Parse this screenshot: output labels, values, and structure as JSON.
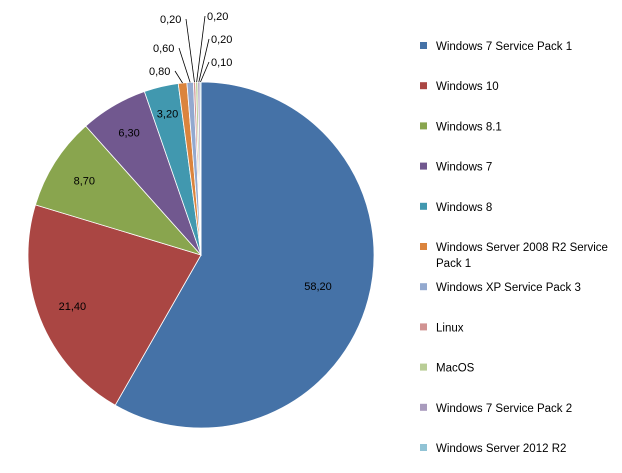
{
  "chart_data": {
    "type": "pie",
    "title": "",
    "start_angle_deg": 0,
    "direction": "clockwise",
    "series": [
      {
        "name": "Windows 7 Service Pack 1",
        "legend_lines": [
          "Windows 7 Service Pack 1"
        ],
        "value": 58.2,
        "label": "58,20",
        "color": "#4572A7"
      },
      {
        "name": "Windows 10",
        "legend_lines": [
          "Windows 10"
        ],
        "value": 21.4,
        "label": "21,40",
        "color": "#AA4643"
      },
      {
        "name": "Windows 8.1",
        "legend_lines": [
          "Windows 8.1"
        ],
        "value": 8.7,
        "label": "8,70",
        "color": "#89A54E"
      },
      {
        "name": "Windows 7",
        "legend_lines": [
          "Windows 7"
        ],
        "value": 6.3,
        "label": "6,30",
        "color": "#71588F"
      },
      {
        "name": "Windows 8",
        "legend_lines": [
          "Windows 8"
        ],
        "value": 3.2,
        "label": "3,20",
        "color": "#4198AF"
      },
      {
        "name": "Windows Server 2008 R2 Service Pack 1",
        "legend_lines": [
          "Windows Server 2008 R2 Service",
          "Pack 1"
        ],
        "value": 0.8,
        "label": "0,80",
        "color": "#DB843D"
      },
      {
        "name": "Windows XP Service Pack 3",
        "legend_lines": [
          "Windows XP Service Pack 3"
        ],
        "value": 0.6,
        "label": "0,60",
        "color": "#93A9CF"
      },
      {
        "name": "Linux",
        "legend_lines": [
          "Linux"
        ],
        "value": 0.2,
        "label": "0,20",
        "color": "#D19392"
      },
      {
        "name": "MacOS",
        "legend_lines": [
          "MacOS"
        ],
        "value": 0.2,
        "label": "0,20",
        "color": "#B9CD96"
      },
      {
        "name": "Windows 7 Service Pack 2",
        "legend_lines": [
          "Windows 7 Service Pack 2"
        ],
        "value": 0.2,
        "label": "0,20",
        "color": "#A99BBD"
      },
      {
        "name": "Windows Server 2012 R2",
        "legend_lines": [
          "Windows Server 2012 R2"
        ],
        "value": 0.1,
        "label": "0,10",
        "color": "#91C3D5"
      }
    ],
    "legend_position": "right"
  }
}
